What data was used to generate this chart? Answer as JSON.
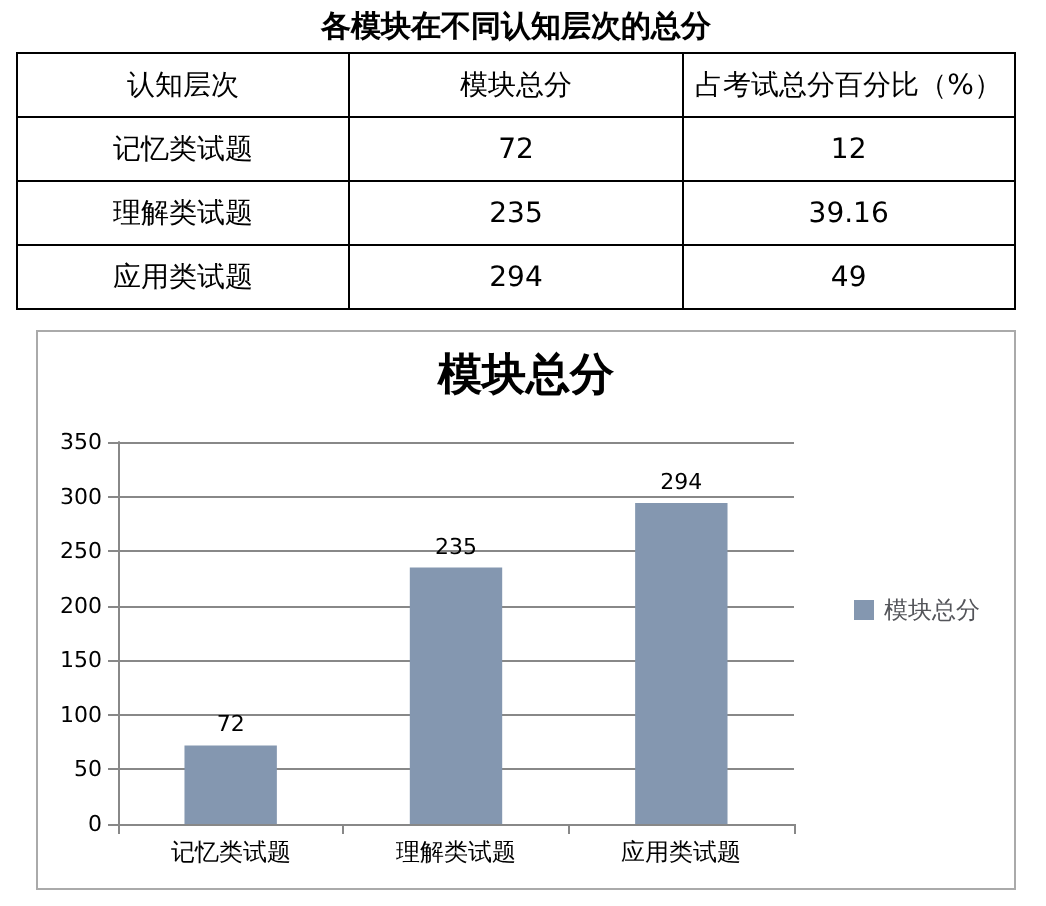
{
  "chart_data": [
    {
      "type": "other",
      "title": "各模块在不同认知层次的总分",
      "categories": [
        "认知层次",
        "模块总分",
        "占考试总分百分比（%）"
      ],
      "annotations": [
        "记忆类试题",
        "72",
        "12",
        "理解类试题",
        "235",
        "39.16",
        "应用类试题",
        "294",
        "49"
      ]
    },
    {
      "type": "bar",
      "title": "模块总分",
      "categories": [
        "记忆类试题",
        "理解类试题",
        "应用类试题"
      ],
      "series": [
        {
          "name": "模块总分",
          "color": "#8497b0",
          "values": [
            72,
            235,
            294
          ]
        }
      ],
      "ylim": [
        0,
        350
      ],
      "yticks": [
        0,
        50,
        100,
        150,
        200,
        250,
        300,
        350
      ],
      "grid": "y",
      "legend": "right",
      "data_labels": true
    }
  ]
}
